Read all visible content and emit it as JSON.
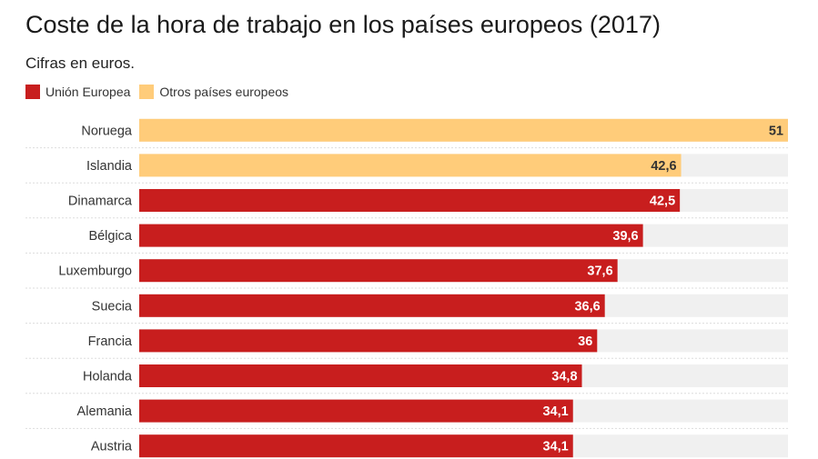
{
  "chart_data": {
    "type": "bar",
    "orientation": "horizontal",
    "title": "Coste de la hora de trabajo en los países europeos (2017)",
    "subtitle": "Cifras en euros.",
    "legend": [
      {
        "name": "Unión Europea",
        "color": "#c81e1e"
      },
      {
        "name": "Otros países europeos",
        "color": "#ffcc7a"
      }
    ],
    "categories": [
      "Noruega",
      "Islandia",
      "Dinamarca",
      "Bélgica",
      "Luxemburgo",
      "Suecia",
      "Francia",
      "Holanda",
      "Alemania",
      "Austria"
    ],
    "values": [
      51,
      42.6,
      42.5,
      39.6,
      37.6,
      36.6,
      36,
      34.8,
      34.1,
      34.1
    ],
    "value_labels": [
      "51",
      "42,6",
      "42,5",
      "39,6",
      "37,6",
      "36,6",
      "36",
      "34,8",
      "34,1",
      "34,1"
    ],
    "groups": [
      "Otros países europeos",
      "Otros países europeos",
      "Unión Europea",
      "Unión Europea",
      "Unión Europea",
      "Unión Europea",
      "Unión Europea",
      "Unión Europea",
      "Unión Europea",
      "Unión Europea"
    ],
    "xlim": [
      0,
      51
    ],
    "background_track": true,
    "legend_position": "top-left"
  },
  "colors": {
    "eu": "#c81e1e",
    "other": "#ffcc7a",
    "track": "#f0f0f0",
    "separator": "#dddddd"
  }
}
